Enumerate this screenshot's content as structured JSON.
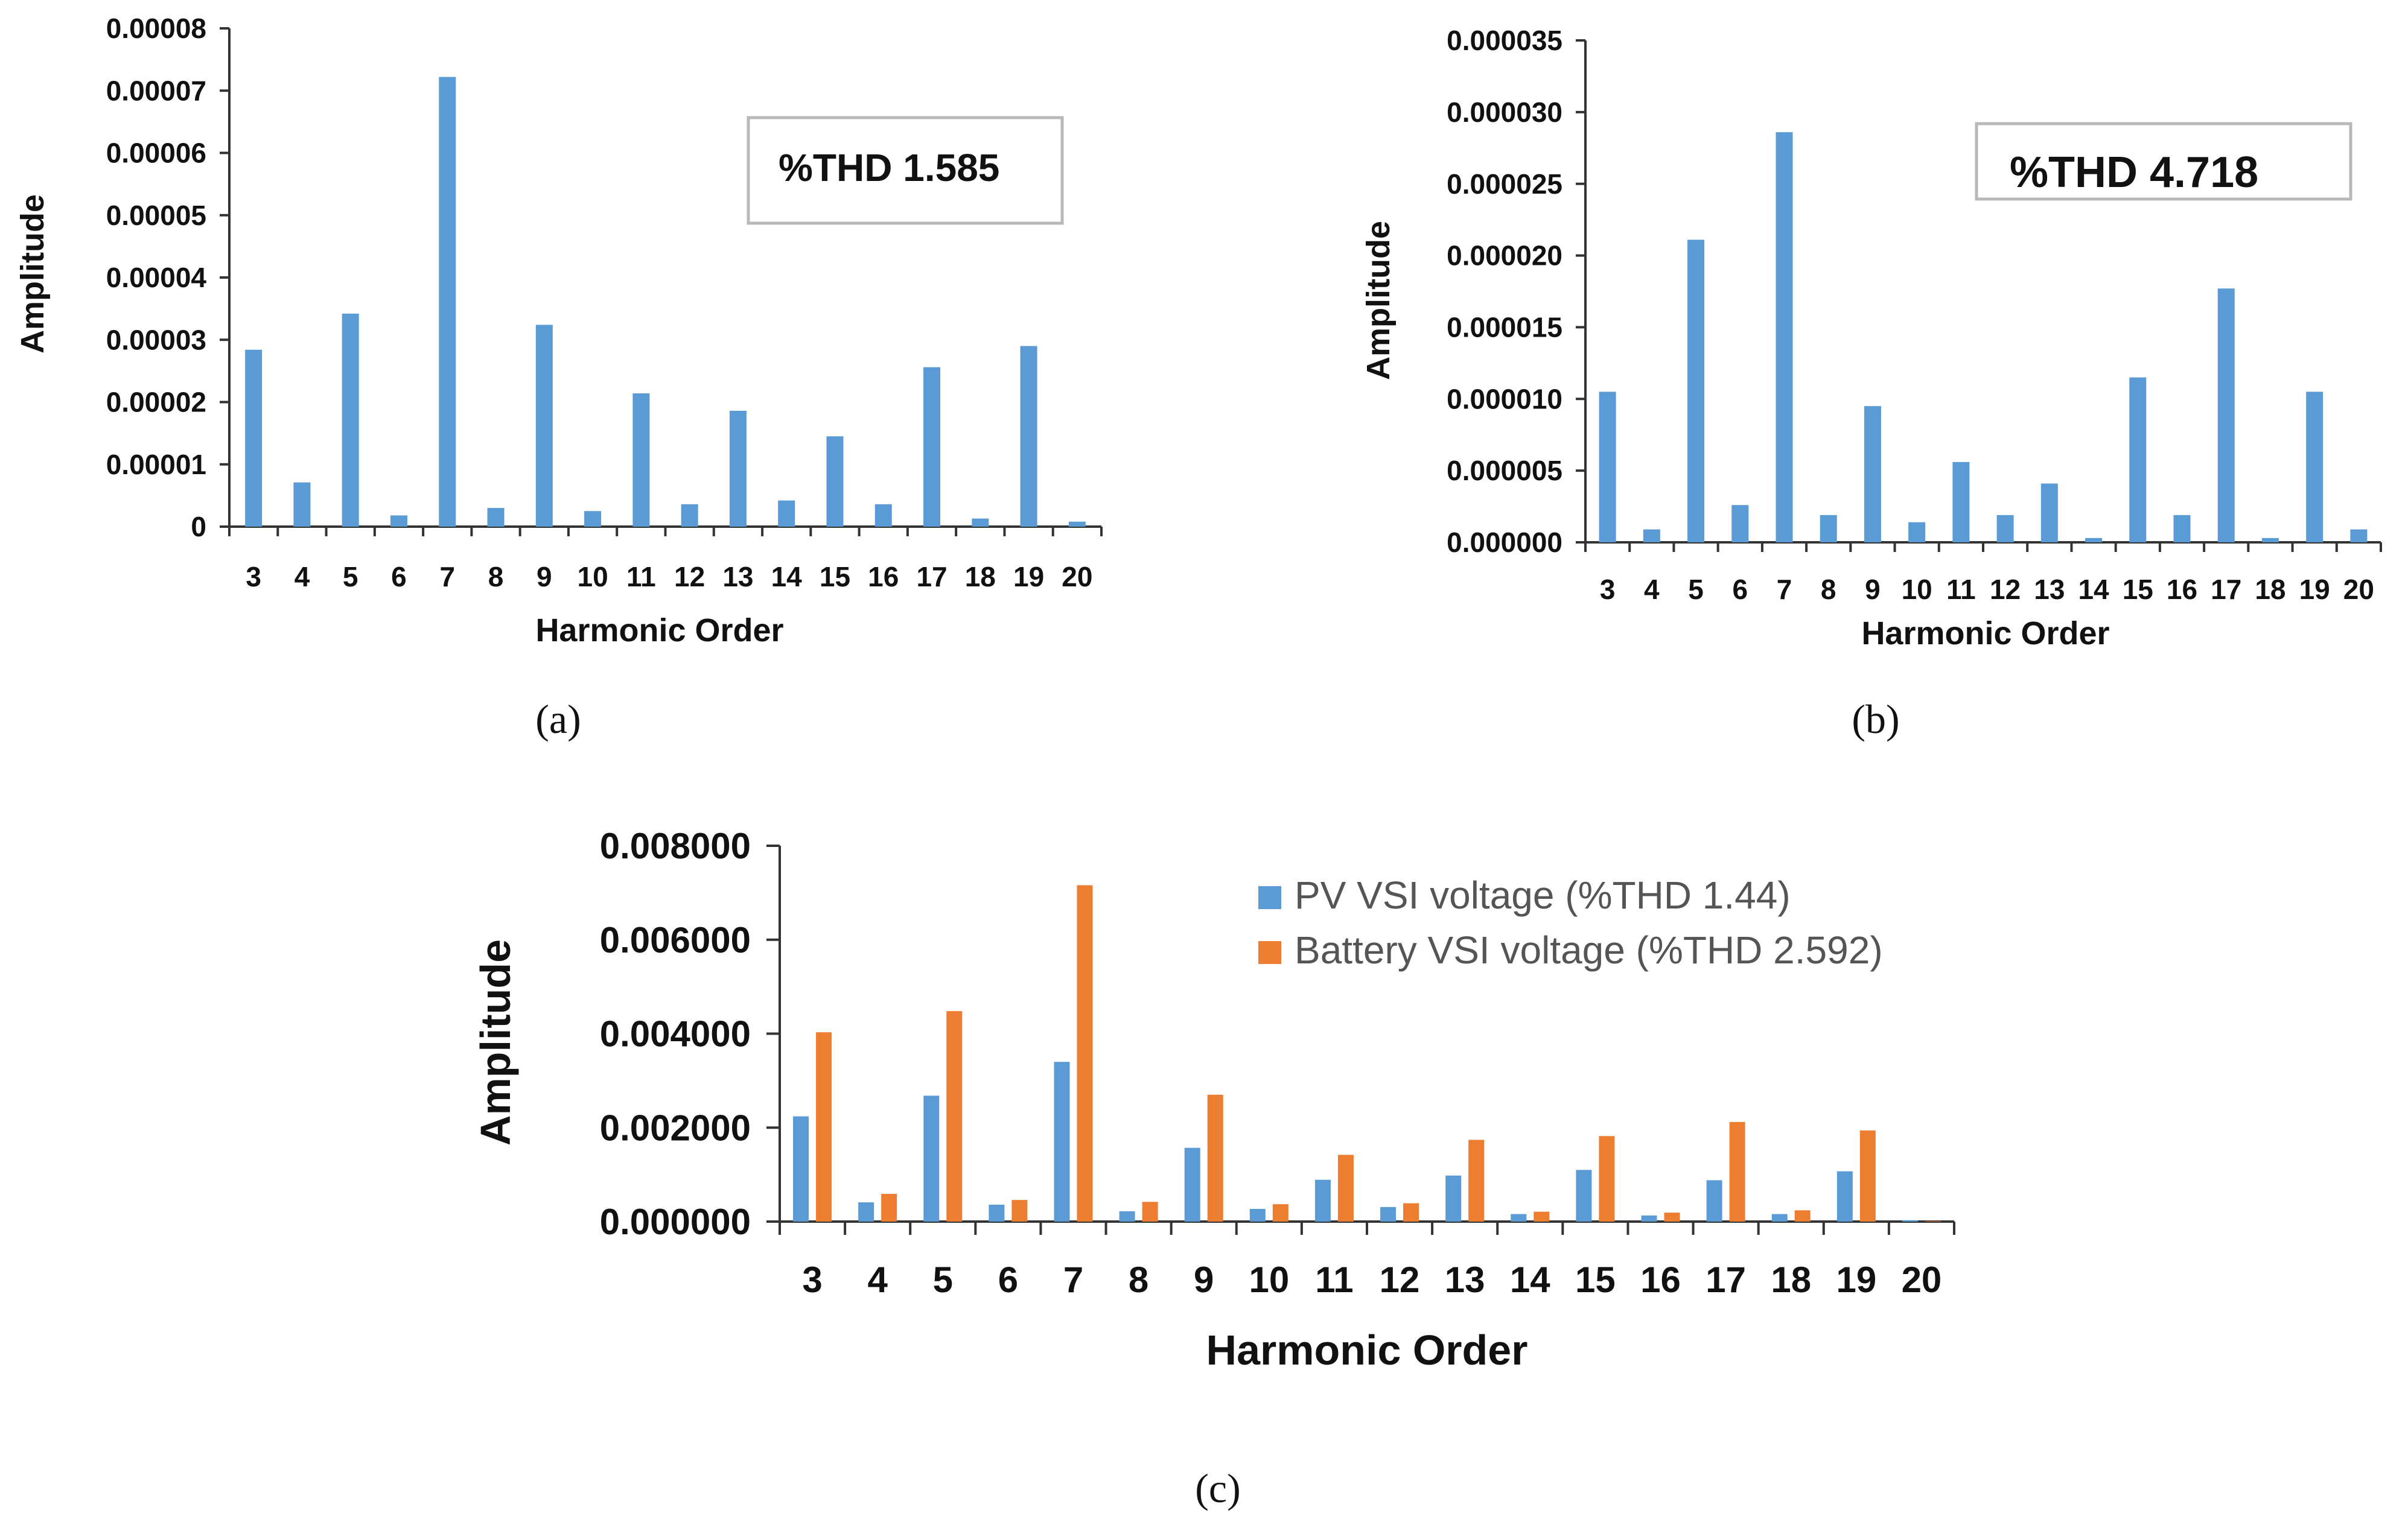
{
  "colors": {
    "pv": "#5b9bd5",
    "battery": "#ed7d31",
    "axis": "#333333",
    "box": "#b8b8b8"
  },
  "chart_data": [
    {
      "panel": "a",
      "type": "bar",
      "caption": "(a)",
      "annotation": "%THD 1.585",
      "xlabel": "Harmonic Order",
      "ylabel": "Amplitude",
      "ylim": [
        0,
        8e-05
      ],
      "yticks": [
        "0",
        "0.00001",
        "0.00002",
        "0.00003",
        "0.00004",
        "0.00005",
        "0.00006",
        "0.00007",
        "0.00008"
      ],
      "categories": [
        "3",
        "4",
        "5",
        "6",
        "7",
        "8",
        "9",
        "10",
        "11",
        "12",
        "13",
        "14",
        "15",
        "16",
        "17",
        "18",
        "19",
        "20"
      ],
      "series": [
        {
          "name": "Amplitude",
          "values": [
            2.84e-05,
            7.1e-06,
            3.42e-05,
            1.8e-06,
            7.22e-05,
            3e-06,
            3.24e-05,
            2.5e-06,
            2.14e-05,
            3.6e-06,
            1.86e-05,
            4.2e-06,
            1.45e-05,
            3.6e-06,
            2.56e-05,
            1.3e-06,
            2.9e-05,
            8e-07
          ]
        }
      ]
    },
    {
      "panel": "b",
      "type": "bar",
      "caption": "(b)",
      "annotation": "%THD 4.718",
      "xlabel": "Harmonic Order",
      "ylabel": "Amplitude",
      "ylim": [
        0,
        3.5e-05
      ],
      "yticks": [
        "0.000000",
        "0.000005",
        "0.000010",
        "0.000015",
        "0.000020",
        "0.000025",
        "0.000030",
        "0.000035"
      ],
      "categories": [
        "3",
        "4",
        "5",
        "6",
        "7",
        "8",
        "9",
        "10",
        "11",
        "12",
        "13",
        "14",
        "15",
        "16",
        "17",
        "18",
        "19",
        "20"
      ],
      "series": [
        {
          "name": "Amplitude",
          "values": [
            1.05e-05,
            9e-07,
            2.11e-05,
            2.6e-06,
            2.86e-05,
            1.9e-06,
            9.5e-06,
            1.4e-06,
            5.6e-06,
            1.9e-06,
            4.1e-06,
            3e-07,
            1.15e-05,
            1.9e-06,
            1.77e-05,
            3e-07,
            1.05e-05,
            9e-07
          ]
        }
      ]
    },
    {
      "panel": "c",
      "type": "bar",
      "caption": "(c)",
      "xlabel": "Harmonic Order",
      "ylabel": "Amplitude",
      "ylim": [
        0,
        0.008
      ],
      "yticks": [
        "0.000000",
        "0.002000",
        "0.004000",
        "0.006000",
        "0.008000"
      ],
      "legend_position": "top-right",
      "categories": [
        "3",
        "4",
        "5",
        "6",
        "7",
        "8",
        "9",
        "10",
        "11",
        "12",
        "13",
        "14",
        "15",
        "16",
        "17",
        "18",
        "19",
        "20"
      ],
      "series": [
        {
          "name": "PV VSI voltage (%THD 1.44)",
          "values": [
            0.00224,
            0.00041,
            0.00268,
            0.00036,
            0.0034,
            0.00022,
            0.00157,
            0.00027,
            0.00089,
            0.00031,
            0.00098,
            0.00016,
            0.0011,
            0.00013,
            0.00088,
            0.00016,
            0.00107,
            3e-05
          ]
        },
        {
          "name": "Battery VSI voltage (%THD 2.592)",
          "values": [
            0.00403,
            0.00059,
            0.00448,
            0.00046,
            0.00716,
            0.00042,
            0.0027,
            0.00037,
            0.00142,
            0.00039,
            0.00174,
            0.00021,
            0.00182,
            0.00019,
            0.00212,
            0.00024,
            0.00194,
            1e-05
          ]
        }
      ]
    }
  ]
}
